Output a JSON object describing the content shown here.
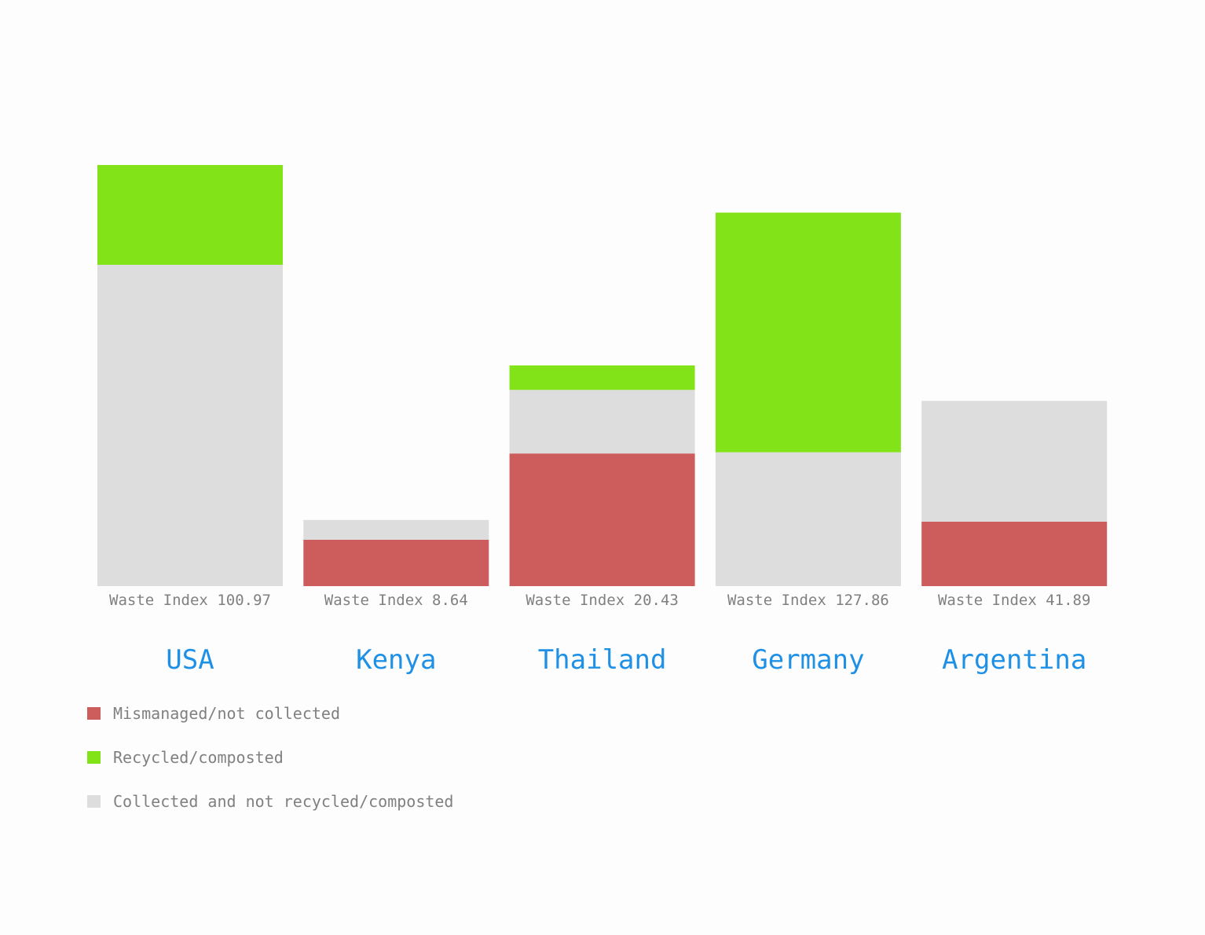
{
  "chart_data": {
    "type": "bar",
    "stacked": true,
    "categories": [
      "USA",
      "Kenya",
      "Thailand",
      "Germany",
      "Argentina"
    ],
    "value_labels": [
      "Waste Index 100.97",
      "Waste Index 8.64",
      "Waste Index 20.43",
      "Waste Index 127.86",
      "Waste Index 41.89"
    ],
    "series": [
      {
        "name": "Mismanaged/not collected",
        "color": "#cd5c5c",
        "values": [
          0,
          11,
          31.5,
          0,
          15.3
        ]
      },
      {
        "name": "Collected and not recycled/composted",
        "color": "#dddddd",
        "values": [
          76.3,
          4.7,
          15.1,
          31.8,
          28.7
        ]
      },
      {
        "name": "Recycled/composted",
        "color": "#82e318",
        "values": [
          23.7,
          0,
          5.8,
          56.9,
          0
        ]
      }
    ],
    "legend": {
      "position": "bottom-left",
      "order": [
        0,
        2,
        1
      ]
    },
    "category_label_color": "#1e90e6",
    "value_label_color": "#808080",
    "grid": false,
    "ylim": [
      0,
      100
    ]
  }
}
